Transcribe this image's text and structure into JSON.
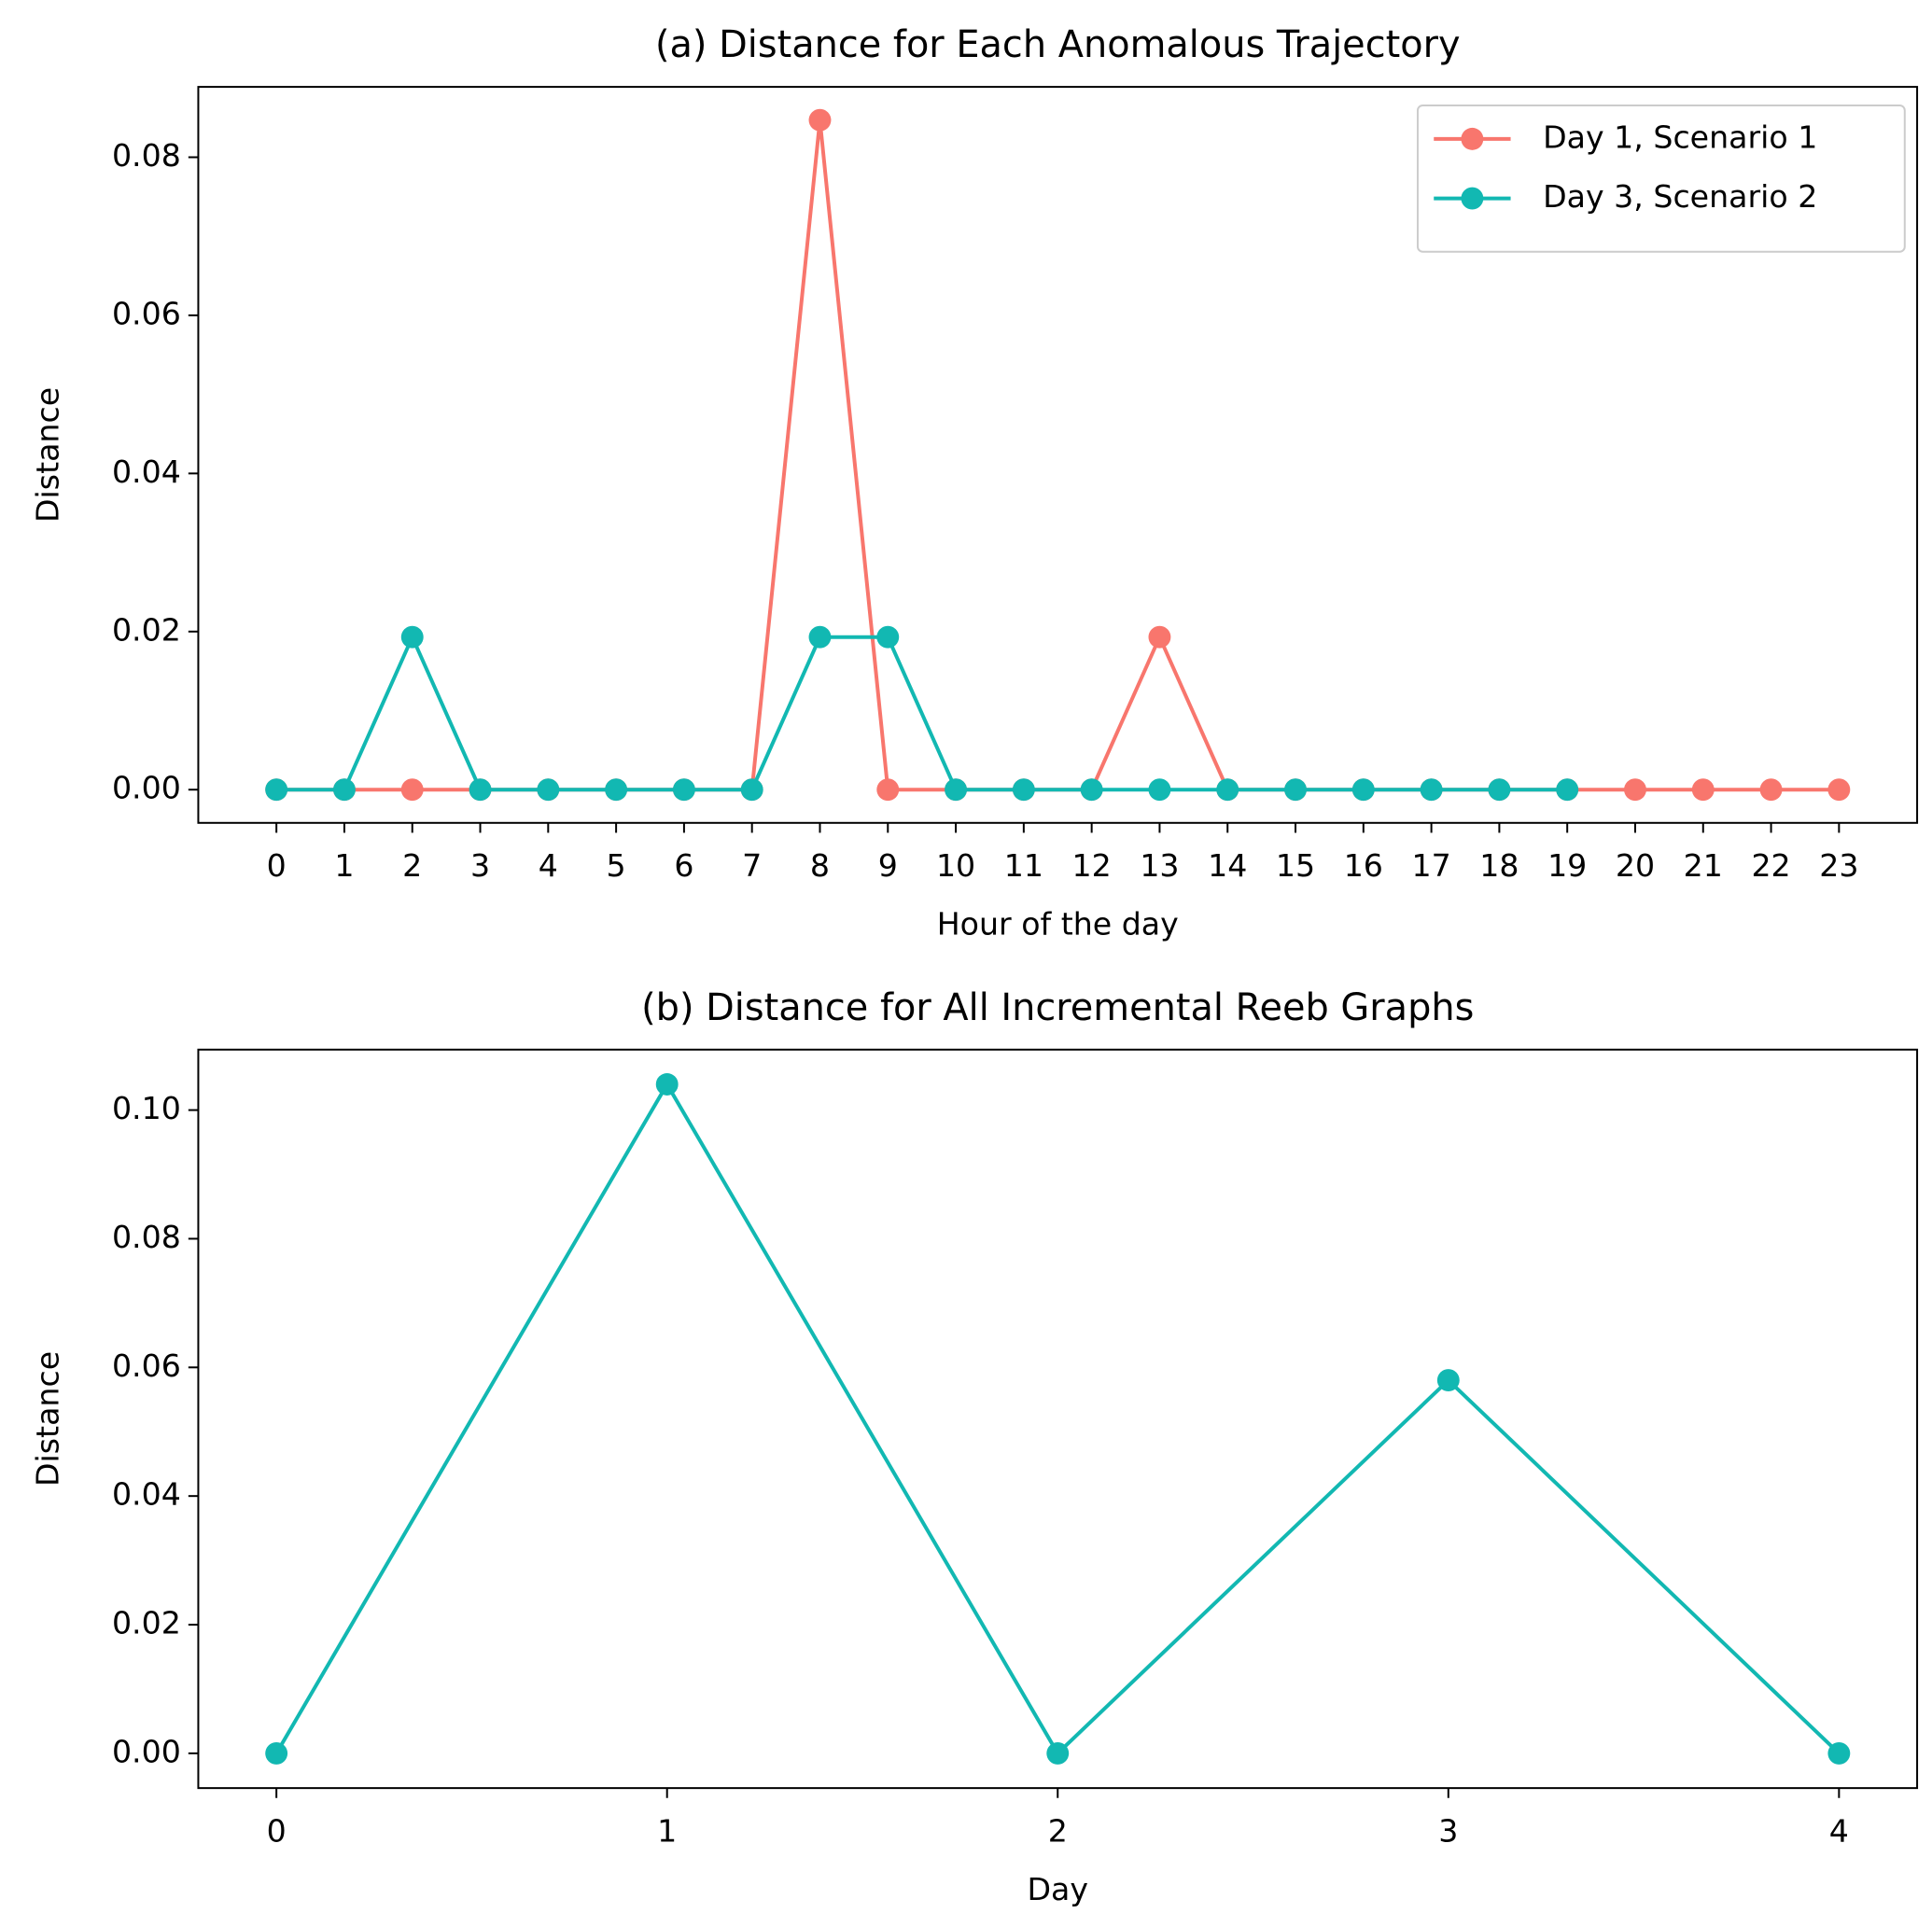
{
  "chart_data": [
    {
      "type": "line",
      "title": "(a) Distance for Each Anomalous Trajectory",
      "xlabel": "Hour of the day",
      "ylabel": "Distance",
      "x": [
        0,
        1,
        2,
        3,
        4,
        5,
        6,
        7,
        8,
        9,
        10,
        11,
        12,
        13,
        14,
        15,
        16,
        17,
        18,
        19,
        20,
        21,
        22,
        23
      ],
      "series": [
        {
          "name": "Day 1, Scenario 1",
          "color": "#f8766d",
          "values": [
            0,
            0,
            0,
            0,
            0,
            0,
            0,
            0,
            0.0847,
            0,
            0,
            0,
            0,
            0.0193,
            0,
            0,
            0,
            0,
            0,
            0,
            0,
            0,
            0,
            0
          ]
        },
        {
          "name": "Day 3, Scenario 2",
          "color": "#12b8b2",
          "values": [
            0,
            0,
            0.0193,
            0,
            0,
            0,
            0,
            0,
            0.0193,
            0.0193,
            0,
            0,
            0,
            0,
            0,
            0,
            0,
            0,
            0,
            0,
            null,
            null,
            null,
            null
          ]
        }
      ],
      "xlim": [
        -1.15,
        24.15
      ],
      "ylim": [
        -0.0042,
        0.0889
      ],
      "xticks": [
        0,
        1,
        2,
        3,
        4,
        5,
        6,
        7,
        8,
        9,
        10,
        11,
        12,
        13,
        14,
        15,
        16,
        17,
        18,
        19,
        20,
        21,
        22,
        23
      ],
      "yticks": [
        {
          "value": 0,
          "label": "0.00"
        },
        {
          "value": 0.02,
          "label": "0.02"
        },
        {
          "value": 0.04,
          "label": "0.04"
        },
        {
          "value": 0.06,
          "label": "0.06"
        },
        {
          "value": 0.08,
          "label": "0.08"
        }
      ],
      "legend": "upper right"
    },
    {
      "type": "line",
      "title": "(b) Distance for All Incremental Reeb Graphs",
      "xlabel": "Day",
      "ylabel": "Distance",
      "x": [
        0,
        1,
        2,
        3,
        4
      ],
      "series": [
        {
          "color": "#12b8b2",
          "values": [
            0,
            0.104,
            0,
            0.058,
            0
          ]
        }
      ],
      "xlim": [
        -0.2,
        4.2
      ],
      "ylim": [
        -0.0054,
        0.1094
      ],
      "xticks": [
        0,
        1,
        2,
        3,
        4
      ],
      "yticks": [
        {
          "value": 0,
          "label": "0.00"
        },
        {
          "value": 0.02,
          "label": "0.02"
        },
        {
          "value": 0.04,
          "label": "0.04"
        },
        {
          "value": 0.06,
          "label": "0.06"
        },
        {
          "value": 0.08,
          "label": "0.08"
        },
        {
          "value": 0.1,
          "label": "0.10"
        }
      ]
    }
  ]
}
